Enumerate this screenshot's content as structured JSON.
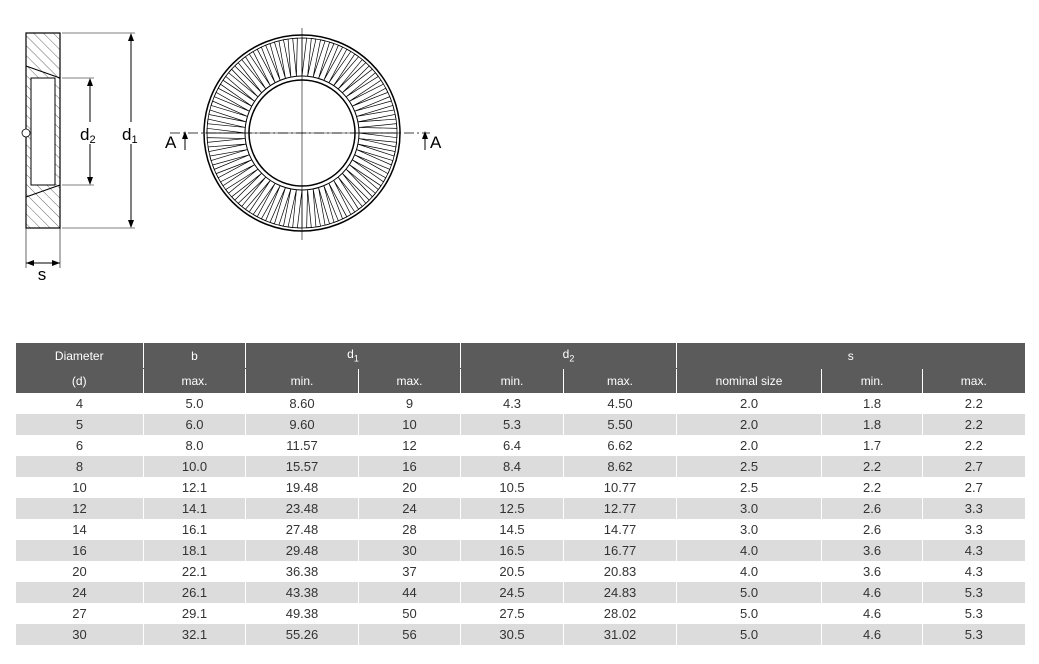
{
  "drawing": {
    "side_labels": {
      "d2": {
        "text": "d",
        "sub": "2"
      },
      "d1": {
        "text": "d",
        "sub": "1"
      },
      "s": "s"
    },
    "section_labels": [
      "A",
      "A"
    ]
  },
  "table": {
    "header": [
      [
        "Diameter",
        "b",
        {
          "text": "d",
          "sub": "1"
        },
        {
          "text": "d",
          "sub": "2"
        },
        "s"
      ],
      [
        "(d)",
        "max.",
        "min.",
        "max.",
        "min.",
        "max.",
        "nominal size",
        "min.",
        "max."
      ]
    ],
    "rows": [
      [
        "4",
        "5.0",
        "8.60",
        "9",
        "4.3",
        "4.50",
        "2.0",
        "1.8",
        "2.2"
      ],
      [
        "5",
        "6.0",
        "9.60",
        "10",
        "5.3",
        "5.50",
        "2.0",
        "1.8",
        "2.2"
      ],
      [
        "6",
        "8.0",
        "11.57",
        "12",
        "6.4",
        "6.62",
        "2.0",
        "1.7",
        "2.2"
      ],
      [
        "8",
        "10.0",
        "15.57",
        "16",
        "8.4",
        "8.62",
        "2.5",
        "2.2",
        "2.7"
      ],
      [
        "10",
        "12.1",
        "19.48",
        "20",
        "10.5",
        "10.77",
        "2.5",
        "2.2",
        "2.7"
      ],
      [
        "12",
        "14.1",
        "23.48",
        "24",
        "12.5",
        "12.77",
        "3.0",
        "2.6",
        "3.3"
      ],
      [
        "14",
        "16.1",
        "27.48",
        "28",
        "14.5",
        "14.77",
        "3.0",
        "2.6",
        "3.3"
      ],
      [
        "16",
        "18.1",
        "29.48",
        "30",
        "16.5",
        "16.77",
        "4.0",
        "3.6",
        "4.3"
      ],
      [
        "20",
        "22.1",
        "36.38",
        "37",
        "20.5",
        "20.83",
        "4.0",
        "3.6",
        "4.3"
      ],
      [
        "24",
        "26.1",
        "43.38",
        "44",
        "24.5",
        "24.83",
        "5.0",
        "4.6",
        "5.3"
      ],
      [
        "27",
        "29.1",
        "49.38",
        "50",
        "27.5",
        "28.02",
        "5.0",
        "4.6",
        "5.3"
      ],
      [
        "30",
        "32.1",
        "55.26",
        "56",
        "30.5",
        "31.02",
        "5.0",
        "4.6",
        "5.3"
      ]
    ]
  }
}
